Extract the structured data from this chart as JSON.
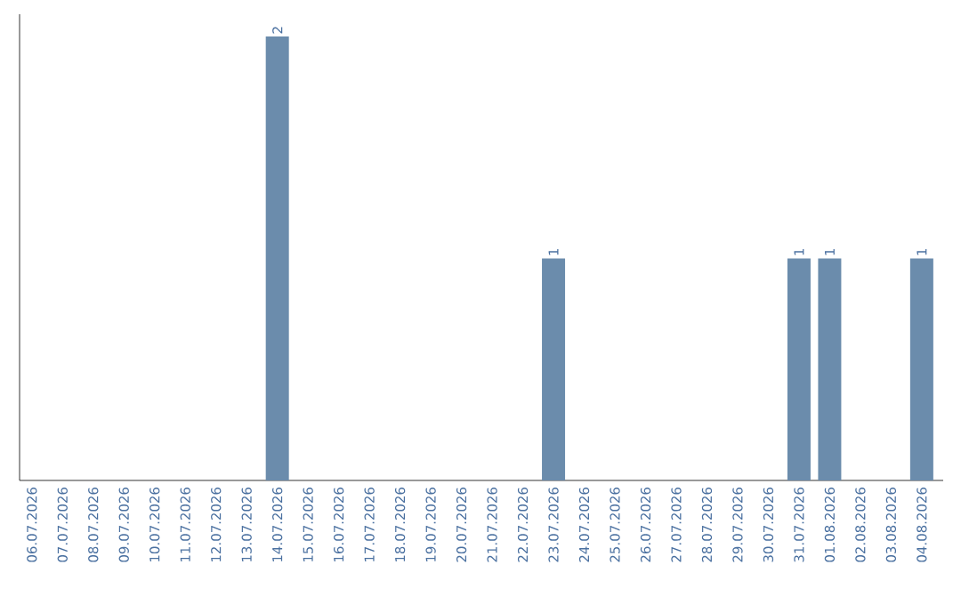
{
  "chart_data": {
    "type": "bar",
    "categories": [
      "06.07.2026",
      "07.07.2026",
      "08.07.2026",
      "09.07.2026",
      "10.07.2026",
      "11.07.2026",
      "12.07.2026",
      "13.07.2026",
      "14.07.2026",
      "15.07.2026",
      "16.07.2026",
      "17.07.2026",
      "18.07.2026",
      "19.07.2026",
      "20.07.2026",
      "21.07.2026",
      "22.07.2026",
      "23.07.2026",
      "24.07.2026",
      "25.07.2026",
      "26.07.2026",
      "27.07.2026",
      "28.07.2026",
      "29.07.2026",
      "30.07.2026",
      "31.07.2026",
      "01.08.2026",
      "02.08.2026",
      "03.08.2026",
      "04.08.2026"
    ],
    "values": [
      0,
      0,
      0,
      0,
      0,
      0,
      0,
      0,
      2,
      0,
      0,
      0,
      0,
      0,
      0,
      0,
      0,
      1,
      0,
      0,
      0,
      0,
      0,
      0,
      0,
      1,
      1,
      0,
      0,
      1
    ],
    "value_labels": [
      null,
      null,
      null,
      null,
      null,
      null,
      null,
      null,
      "2",
      null,
      null,
      null,
      null,
      null,
      null,
      null,
      null,
      "1",
      null,
      null,
      null,
      null,
      null,
      null,
      null,
      "1",
      "1",
      null,
      null,
      "1"
    ],
    "color": "#6b8cac",
    "tick_labels": "x",
    "grid": false
  }
}
